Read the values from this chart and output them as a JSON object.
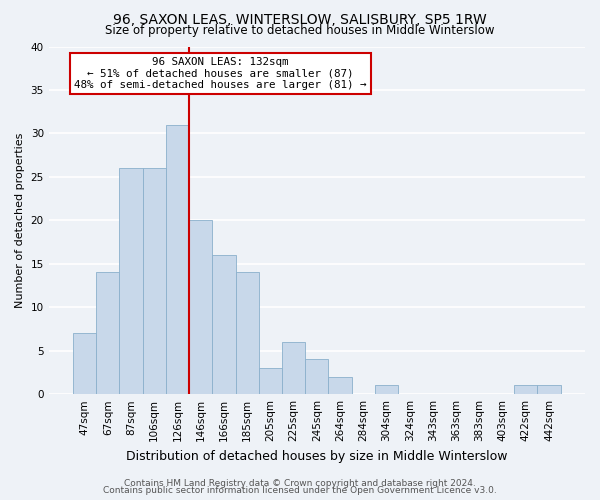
{
  "title": "96, SAXON LEAS, WINTERSLOW, SALISBURY, SP5 1RW",
  "subtitle": "Size of property relative to detached houses in Middle Winterslow",
  "xlabel": "Distribution of detached houses by size in Middle Winterslow",
  "ylabel": "Number of detached properties",
  "bar_labels": [
    "47sqm",
    "67sqm",
    "87sqm",
    "106sqm",
    "126sqm",
    "146sqm",
    "166sqm",
    "185sqm",
    "205sqm",
    "225sqm",
    "245sqm",
    "264sqm",
    "284sqm",
    "304sqm",
    "324sqm",
    "343sqm",
    "363sqm",
    "383sqm",
    "403sqm",
    "422sqm",
    "442sqm"
  ],
  "bar_values": [
    7,
    14,
    26,
    26,
    31,
    20,
    16,
    14,
    3,
    6,
    4,
    2,
    0,
    1,
    0,
    0,
    0,
    0,
    0,
    1,
    1
  ],
  "bar_color": "#c8d8ea",
  "bar_edge_color": "#8ab0cc",
  "highlight_bar_index": 4,
  "highlight_color": "#cc0000",
  "annotation_line1": "96 SAXON LEAS: 132sqm",
  "annotation_line2": "← 51% of detached houses are smaller (87)",
  "annotation_line3": "48% of semi-detached houses are larger (81) →",
  "annotation_box_color": "#ffffff",
  "annotation_box_edge": "#cc0000",
  "ylim": [
    0,
    40
  ],
  "yticks": [
    0,
    5,
    10,
    15,
    20,
    25,
    30,
    35,
    40
  ],
  "footer1": "Contains HM Land Registry data © Crown copyright and database right 2024.",
  "footer2": "Contains public sector information licensed under the Open Government Licence v3.0.",
  "background_color": "#eef2f7",
  "grid_color": "#ffffff",
  "title_fontsize": 10,
  "subtitle_fontsize": 8.5,
  "ylabel_fontsize": 8,
  "xlabel_fontsize": 9,
  "tick_fontsize": 7.5,
  "footer_fontsize": 6.5
}
